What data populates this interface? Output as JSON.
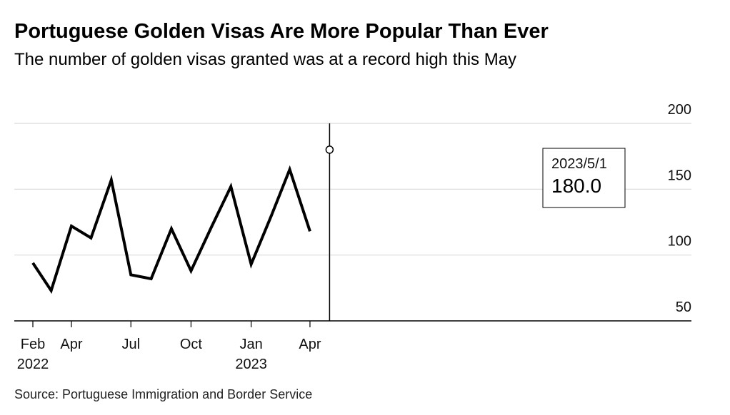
{
  "title": "Portuguese Golden Visas Are More Popular Than Ever",
  "subtitle": "The number of golden visas granted was at a record high this May",
  "source": "Source: Portuguese Immigration and Border Service",
  "chart_data": {
    "type": "line",
    "title": "Portuguese Golden Visas Are More Popular Than Ever",
    "subtitle": "The number of golden visas granted was at a record high this May",
    "xlabel": "",
    "ylabel": "",
    "ylim": [
      50,
      200
    ],
    "yticks": [
      50,
      100,
      150,
      200
    ],
    "y_axis_side": "right",
    "grid": true,
    "x_dates": [
      "2022-02-01",
      "2022-03-01",
      "2022-04-01",
      "2022-05-01",
      "2022-06-01",
      "2022-07-01",
      "2022-08-01",
      "2022-09-01",
      "2022-10-01",
      "2022-11-01",
      "2022-12-01",
      "2023-01-01",
      "2023-02-01",
      "2023-03-01",
      "2023-04-01",
      "2023-05-01"
    ],
    "series": [
      {
        "name": "Golden visas granted",
        "values": [
          94,
          73,
          122,
          113,
          157,
          85,
          82,
          120,
          88,
          121,
          152,
          93,
          130,
          165,
          118,
          180
        ]
      }
    ],
    "xticks": [
      {
        "index": 0,
        "label": "Feb",
        "year": "2022"
      },
      {
        "index": 2,
        "label": "Apr",
        "year": ""
      },
      {
        "index": 5,
        "label": "Jul",
        "year": ""
      },
      {
        "index": 8,
        "label": "Oct",
        "year": ""
      },
      {
        "index": 11,
        "label": "Jan",
        "year": "2023"
      },
      {
        "index": 14,
        "label": "Apr",
        "year": ""
      }
    ],
    "tooltip": {
      "index": 15,
      "date": "2023/5/1",
      "value": "180.0"
    },
    "colors": {
      "line": "#000000",
      "grid": "#d9d9d9",
      "axis": "#000000",
      "tooltip_bg": "#ffffff",
      "tooltip_border": "#000000"
    }
  }
}
